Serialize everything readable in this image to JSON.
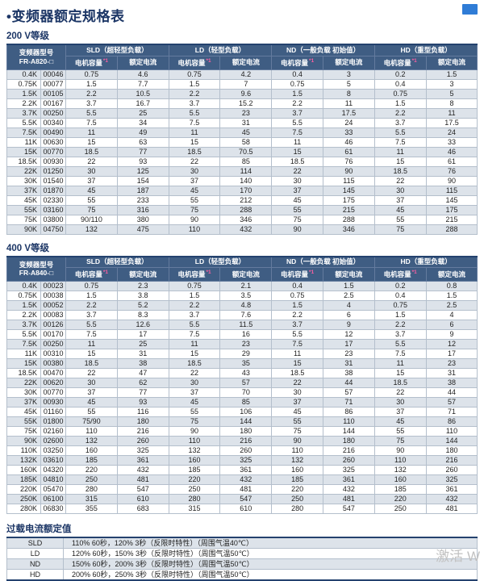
{
  "page": {
    "title": "•变频器额定规格表",
    "watermark": "激活 W"
  },
  "spec_tables": {
    "model_label": "变频器型号",
    "capacity_label": "电机容量",
    "capacity_note": "*1",
    "current_label": "额定电流",
    "load_groups": [
      "SLD（超轻型负载）",
      "LD（轻型负载）",
      "ND（一般负载 初始值）",
      "HD（重型负载）"
    ],
    "t200": {
      "section_label": "200 V等级",
      "model_series": "FR-A820-□",
      "rows": [
        [
          "0.4K",
          "00046",
          "0.75",
          "4.6",
          "0.75",
          "4.2",
          "0.4",
          "3",
          "0.2",
          "1.5"
        ],
        [
          "0.75K",
          "00077",
          "1.5",
          "7.7",
          "1.5",
          "7",
          "0.75",
          "5",
          "0.4",
          "3"
        ],
        [
          "1.5K",
          "00105",
          "2.2",
          "10.5",
          "2.2",
          "9.6",
          "1.5",
          "8",
          "0.75",
          "5"
        ],
        [
          "2.2K",
          "00167",
          "3.7",
          "16.7",
          "3.7",
          "15.2",
          "2.2",
          "11",
          "1.5",
          "8"
        ],
        [
          "3.7K",
          "00250",
          "5.5",
          "25",
          "5.5",
          "23",
          "3.7",
          "17.5",
          "2.2",
          "11"
        ],
        [
          "5.5K",
          "00340",
          "7.5",
          "34",
          "7.5",
          "31",
          "5.5",
          "24",
          "3.7",
          "17.5"
        ],
        [
          "7.5K",
          "00490",
          "11",
          "49",
          "11",
          "45",
          "7.5",
          "33",
          "5.5",
          "24"
        ],
        [
          "11K",
          "00630",
          "15",
          "63",
          "15",
          "58",
          "11",
          "46",
          "7.5",
          "33"
        ],
        [
          "15K",
          "00770",
          "18.5",
          "77",
          "18.5",
          "70.5",
          "15",
          "61",
          "11",
          "46"
        ],
        [
          "18.5K",
          "00930",
          "22",
          "93",
          "22",
          "85",
          "18.5",
          "76",
          "15",
          "61"
        ],
        [
          "22K",
          "01250",
          "30",
          "125",
          "30",
          "114",
          "22",
          "90",
          "18.5",
          "76"
        ],
        [
          "30K",
          "01540",
          "37",
          "154",
          "37",
          "140",
          "30",
          "115",
          "22",
          "90"
        ],
        [
          "37K",
          "01870",
          "45",
          "187",
          "45",
          "170",
          "37",
          "145",
          "30",
          "115"
        ],
        [
          "45K",
          "02330",
          "55",
          "233",
          "55",
          "212",
          "45",
          "175",
          "37",
          "145"
        ],
        [
          "55K",
          "03160",
          "75",
          "316",
          "75",
          "288",
          "55",
          "215",
          "45",
          "175"
        ],
        [
          "75K",
          "03800",
          "90/110",
          "380",
          "90",
          "346",
          "75",
          "288",
          "55",
          "215"
        ],
        [
          "90K",
          "04750",
          "132",
          "475",
          "110",
          "432",
          "90",
          "346",
          "75",
          "288"
        ]
      ]
    },
    "t400": {
      "section_label": "400 V等级",
      "model_series": "FR-A840-□",
      "rows": [
        [
          "0.4K",
          "00023",
          "0.75",
          "2.3",
          "0.75",
          "2.1",
          "0.4",
          "1.5",
          "0.2",
          "0.8"
        ],
        [
          "0.75K",
          "00038",
          "1.5",
          "3.8",
          "1.5",
          "3.5",
          "0.75",
          "2.5",
          "0.4",
          "1.5"
        ],
        [
          "1.5K",
          "00052",
          "2.2",
          "5.2",
          "2.2",
          "4.8",
          "1.5",
          "4",
          "0.75",
          "2.5"
        ],
        [
          "2.2K",
          "00083",
          "3.7",
          "8.3",
          "3.7",
          "7.6",
          "2.2",
          "6",
          "1.5",
          "4"
        ],
        [
          "3.7K",
          "00126",
          "5.5",
          "12.6",
          "5.5",
          "11.5",
          "3.7",
          "9",
          "2.2",
          "6"
        ],
        [
          "5.5K",
          "00170",
          "7.5",
          "17",
          "7.5",
          "16",
          "5.5",
          "12",
          "3.7",
          "9"
        ],
        [
          "7.5K",
          "00250",
          "11",
          "25",
          "11",
          "23",
          "7.5",
          "17",
          "5.5",
          "12"
        ],
        [
          "11K",
          "00310",
          "15",
          "31",
          "15",
          "29",
          "11",
          "23",
          "7.5",
          "17"
        ],
        [
          "15K",
          "00380",
          "18.5",
          "38",
          "18.5",
          "35",
          "15",
          "31",
          "11",
          "23"
        ],
        [
          "18.5K",
          "00470",
          "22",
          "47",
          "22",
          "43",
          "18.5",
          "38",
          "15",
          "31"
        ],
        [
          "22K",
          "00620",
          "30",
          "62",
          "30",
          "57",
          "22",
          "44",
          "18.5",
          "38"
        ],
        [
          "30K",
          "00770",
          "37",
          "77",
          "37",
          "70",
          "30",
          "57",
          "22",
          "44"
        ],
        [
          "37K",
          "00930",
          "45",
          "93",
          "45",
          "85",
          "37",
          "71",
          "30",
          "57"
        ],
        [
          "45K",
          "01160",
          "55",
          "116",
          "55",
          "106",
          "45",
          "86",
          "37",
          "71"
        ],
        [
          "55K",
          "01800",
          "75/90",
          "180",
          "75",
          "144",
          "55",
          "110",
          "45",
          "86"
        ],
        [
          "75K",
          "02160",
          "110",
          "216",
          "90",
          "180",
          "75",
          "144",
          "55",
          "110"
        ],
        [
          "90K",
          "02600",
          "132",
          "260",
          "110",
          "216",
          "90",
          "180",
          "75",
          "144"
        ],
        [
          "110K",
          "03250",
          "160",
          "325",
          "132",
          "260",
          "110",
          "216",
          "90",
          "180"
        ],
        [
          "132K",
          "03610",
          "185",
          "361",
          "160",
          "325",
          "132",
          "260",
          "110",
          "216"
        ],
        [
          "160K",
          "04320",
          "220",
          "432",
          "185",
          "361",
          "160",
          "325",
          "132",
          "260"
        ],
        [
          "185K",
          "04810",
          "250",
          "481",
          "220",
          "432",
          "185",
          "361",
          "160",
          "325"
        ],
        [
          "220K",
          "05470",
          "280",
          "547",
          "250",
          "481",
          "220",
          "432",
          "185",
          "361"
        ],
        [
          "250K",
          "06100",
          "315",
          "610",
          "280",
          "547",
          "250",
          "481",
          "220",
          "432"
        ],
        [
          "280K",
          "06830",
          "355",
          "683",
          "315",
          "610",
          "280",
          "547",
          "250",
          "481"
        ]
      ]
    }
  },
  "overload": {
    "section_label": "过载电流额定值",
    "rows": [
      [
        "SLD",
        "110% 60秒，120% 3秒（反限时特性）（周围气温40℃）"
      ],
      [
        "LD",
        "120% 60秒，150% 3秒（反限时特性）（周围气温50℃）"
      ],
      [
        "ND",
        "150% 60秒，200% 3秒（反限时特性）（周围气温50℃）"
      ],
      [
        "HD",
        "200% 60秒，250% 3秒（反限时特性）（周围气温50℃）"
      ]
    ]
  }
}
